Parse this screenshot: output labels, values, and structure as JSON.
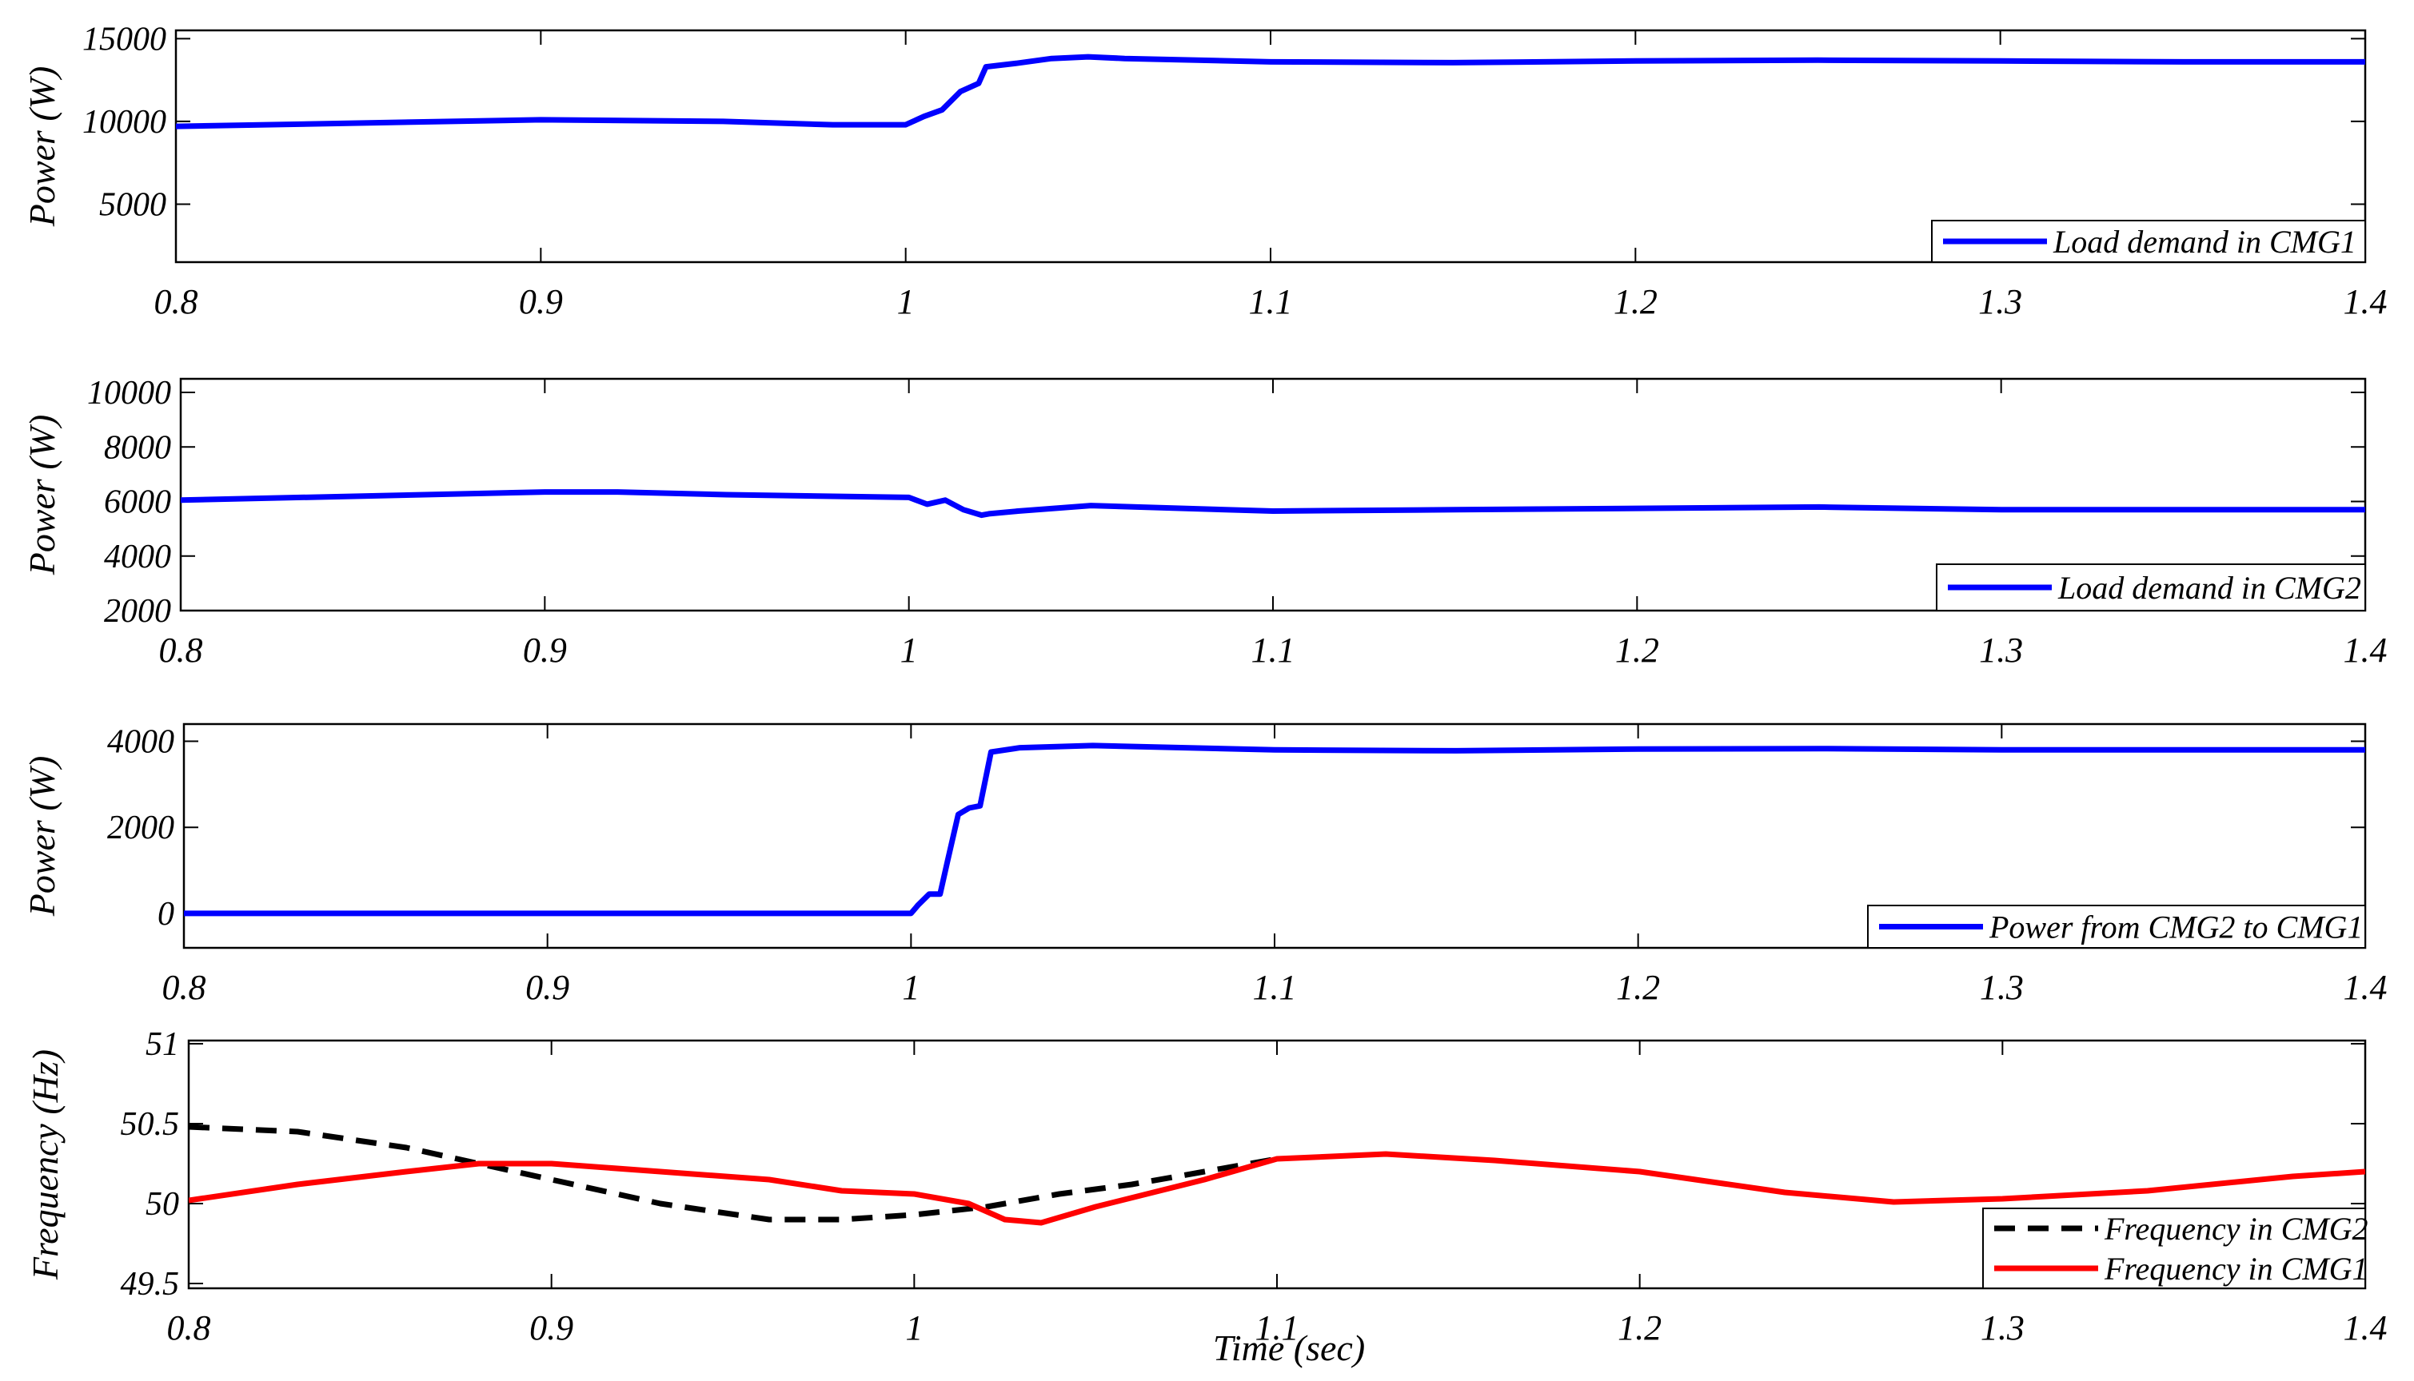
{
  "chart_data": [
    {
      "type": "line",
      "title": "",
      "xlabel": "",
      "ylabel": "Power (W)",
      "xlim": [
        0.8,
        1.4
      ],
      "ylim": [
        1500,
        15500
      ],
      "xticks": [
        0.8,
        0.9,
        1,
        1.1,
        1.2,
        1.3,
        1.4
      ],
      "xtick_labels": [
        "0.8",
        "0.9",
        "1",
        "1.1",
        "1.2",
        "1.3",
        "1.4"
      ],
      "yticks": [
        5000,
        10000,
        15000
      ],
      "ytick_labels": [
        "5000",
        "10000",
        "15000"
      ],
      "grid": false,
      "legend_position": "bottom-right",
      "series": [
        {
          "name": "Load demand in CMG1",
          "color": "#0000ff",
          "style": "solid",
          "x": [
            0.8,
            0.85,
            0.9,
            0.95,
            0.98,
            1.0,
            1.005,
            1.01,
            1.015,
            1.02,
            1.022,
            1.03,
            1.04,
            1.05,
            1.06,
            1.1,
            1.15,
            1.2,
            1.25,
            1.3,
            1.35,
            1.4
          ],
          "y": [
            9700,
            9900,
            10100,
            10000,
            9800,
            9800,
            10300,
            10700,
            11800,
            12300,
            13300,
            13500,
            13800,
            13900,
            13800,
            13600,
            13550,
            13650,
            13700,
            13650,
            13600,
            13600
          ]
        }
      ]
    },
    {
      "type": "line",
      "title": "",
      "xlabel": "",
      "ylabel": "Power (W)",
      "xlim": [
        0.8,
        1.4
      ],
      "ylim": [
        2000,
        10500
      ],
      "xticks": [
        0.8,
        0.9,
        1,
        1.1,
        1.2,
        1.3,
        1.4
      ],
      "xtick_labels": [
        "0.8",
        "0.9",
        "1",
        "1.1",
        "1.2",
        "1.3",
        "1.4"
      ],
      "yticks": [
        2000,
        4000,
        6000,
        8000,
        10000
      ],
      "ytick_labels": [
        "2000",
        "4000",
        "6000",
        "8000",
        "10000"
      ],
      "grid": false,
      "legend_position": "bottom-right",
      "series": [
        {
          "name": "Load demand in CMG2",
          "color": "#0000ff",
          "style": "solid",
          "x": [
            0.8,
            0.85,
            0.9,
            0.92,
            0.95,
            1.0,
            1.005,
            1.01,
            1.015,
            1.02,
            1.022,
            1.03,
            1.05,
            1.1,
            1.15,
            1.2,
            1.25,
            1.3,
            1.35,
            1.4
          ],
          "y": [
            6050,
            6200,
            6350,
            6350,
            6250,
            6150,
            5900,
            6050,
            5700,
            5500,
            5550,
            5650,
            5850,
            5650,
            5700,
            5750,
            5800,
            5700,
            5700,
            5700
          ]
        }
      ]
    },
    {
      "type": "line",
      "title": "",
      "xlabel": "",
      "ylabel": "Power (W)",
      "xlim": [
        0.8,
        1.4
      ],
      "ylim": [
        -800,
        4400
      ],
      "xticks": [
        0.8,
        0.9,
        1,
        1.1,
        1.2,
        1.3,
        1.4
      ],
      "xtick_labels": [
        "0.8",
        "0.9",
        "1",
        "1.1",
        "1.2",
        "1.3",
        "1.4"
      ],
      "yticks": [
        0,
        2000,
        4000
      ],
      "ytick_labels": [
        "0",
        "2000",
        "4000"
      ],
      "grid": false,
      "legend_position": "bottom-right",
      "series": [
        {
          "name": "Power from CMG2 to CMG1",
          "color": "#0000ff",
          "style": "solid",
          "x": [
            0.8,
            0.9,
            1.0,
            1.002,
            1.005,
            1.008,
            1.01,
            1.013,
            1.016,
            1.019,
            1.022,
            1.03,
            1.05,
            1.1,
            1.15,
            1.2,
            1.25,
            1.3,
            1.35,
            1.4
          ],
          "y": [
            0,
            0,
            0,
            200,
            450,
            450,
            1200,
            2300,
            2450,
            2500,
            3750,
            3850,
            3900,
            3800,
            3780,
            3820,
            3830,
            3800,
            3800,
            3800
          ]
        }
      ]
    },
    {
      "type": "line",
      "title": "",
      "xlabel": "Time (sec)",
      "ylabel": "Frequency (Hz)",
      "xlim": [
        0.8,
        1.4
      ],
      "ylim": [
        49.47,
        51.02
      ],
      "xticks": [
        0.8,
        0.9,
        1,
        1.1,
        1.2,
        1.3,
        1.4
      ],
      "xtick_labels": [
        "0.8",
        "0.9",
        "1",
        "1.1",
        "1.2",
        "1.3",
        "1.4"
      ],
      "yticks": [
        49.5,
        50,
        50.5,
        51
      ],
      "ytick_labels": [
        "49.5",
        "50",
        "50.5",
        "51"
      ],
      "grid": false,
      "legend_position": "bottom-right",
      "series": [
        {
          "name": "Frequency in CMG2",
          "color": "#000000",
          "style": "dashed",
          "x": [
            0.8,
            0.83,
            0.86,
            0.9,
            0.93,
            0.96,
            0.98,
            1.0,
            1.02,
            1.04,
            1.06,
            1.08,
            1.1
          ],
          "y": [
            50.48,
            50.45,
            50.35,
            50.15,
            50.0,
            49.9,
            49.9,
            49.93,
            49.98,
            50.06,
            50.12,
            50.2,
            50.28
          ]
        },
        {
          "name": "Frequency in CMG1",
          "color": "#ff0000",
          "style": "solid",
          "x": [
            0.8,
            0.83,
            0.86,
            0.88,
            0.9,
            0.93,
            0.96,
            0.98,
            1.0,
            1.015,
            1.025,
            1.035,
            1.05,
            1.08,
            1.1,
            1.13,
            1.16,
            1.2,
            1.24,
            1.27,
            1.3,
            1.34,
            1.38,
            1.4
          ],
          "y": [
            50.02,
            50.12,
            50.2,
            50.25,
            50.25,
            50.2,
            50.15,
            50.08,
            50.06,
            50.0,
            49.9,
            49.88,
            49.98,
            50.15,
            50.28,
            50.31,
            50.27,
            50.2,
            50.07,
            50.01,
            50.03,
            50.08,
            50.17,
            50.2
          ]
        }
      ]
    }
  ]
}
